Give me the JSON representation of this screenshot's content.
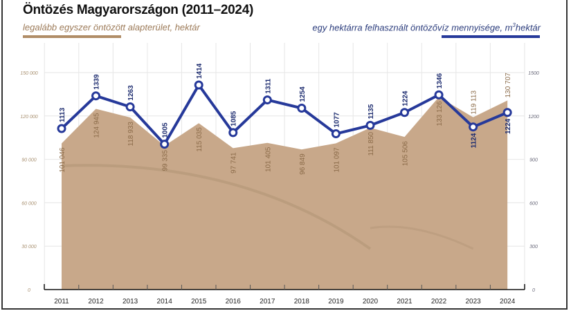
{
  "chart_data": {
    "type": "line",
    "title": "Öntözés Magyarországon (2011–2024)",
    "categories": [
      "2011",
      "2012",
      "2013",
      "2014",
      "2015",
      "2016",
      "2017",
      "2018",
      "2019",
      "2020",
      "2021",
      "2022",
      "2023",
      "2024"
    ],
    "series": [
      {
        "name": "legalább egyszer öntözött alapterület, hektár",
        "type": "area",
        "axis": "left",
        "color": "#c8a88a",
        "values": [
          101046,
          124945,
          118933,
          99335,
          115035,
          97741,
          101405,
          96849,
          101097,
          111850,
          105506,
          133126,
          119113,
          130707
        ],
        "labels": [
          "101 046",
          "124 945",
          "118 933",
          "99 335",
          "115 035",
          "97 741",
          "101 405",
          "96 849",
          "101 097",
          "111 850",
          "105 506",
          "133 126",
          "119 113",
          "130 707"
        ]
      },
      {
        "name_prefix": "egy hektárra felhasznált öntözővíz mennyisége, m",
        "name_sup": "3",
        "name_suffix": "hektár",
        "type": "line",
        "axis": "right",
        "color": "#26399a",
        "values": [
          1113,
          1339,
          1263,
          1005,
          1414,
          1085,
          1311,
          1254,
          1077,
          1135,
          1224,
          1346,
          1124,
          1224
        ]
      }
    ],
    "y_left": {
      "range": [
        0,
        150000
      ],
      "ticks": [
        0,
        30000,
        60000,
        90000,
        120000,
        150000
      ],
      "tick_labels": [
        "0",
        "30 000",
        "60 000",
        "90 000",
        "120 000",
        "150 000"
      ]
    },
    "y_right": {
      "range": [
        0,
        1500
      ],
      "ticks": [
        0,
        300,
        600,
        900,
        1200,
        1500
      ],
      "tick_labels": [
        "0",
        "300",
        "600",
        "900",
        "1200",
        "1500"
      ]
    },
    "grid": true,
    "legend": "top"
  }
}
